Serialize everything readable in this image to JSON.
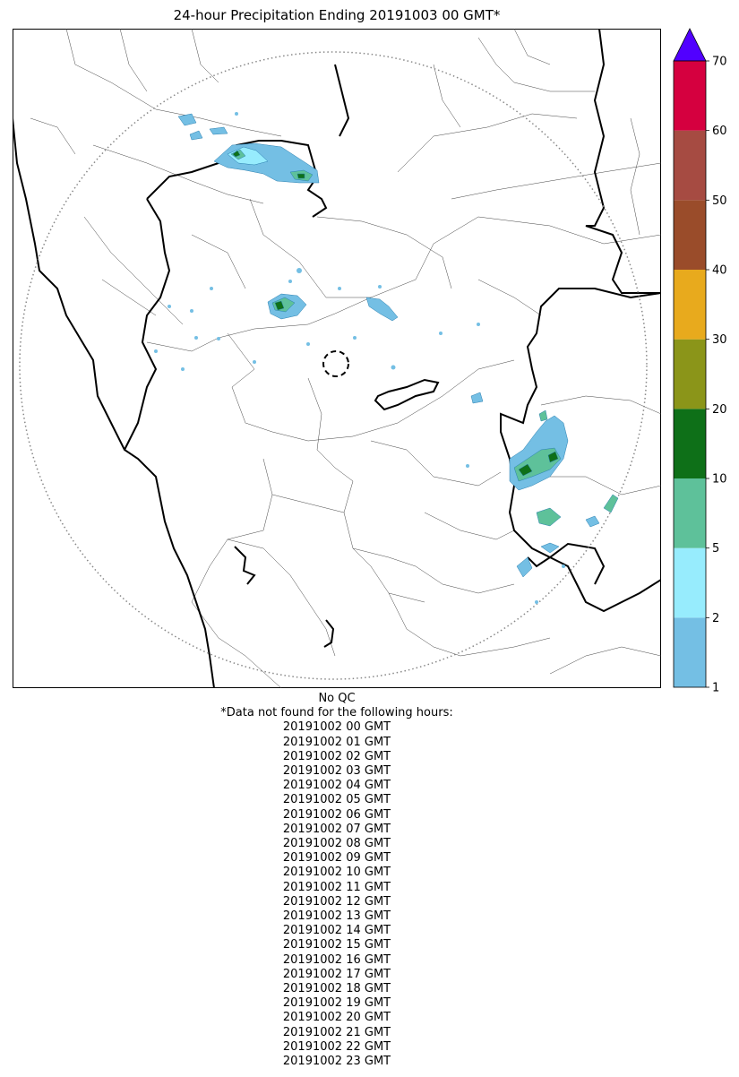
{
  "title": "24-hour Precipitation Ending 20191003 00 GMT*",
  "colorbar": {
    "bins": [
      {
        "from": 1,
        "to": 2,
        "color": "#74bfe4"
      },
      {
        "from": 2,
        "to": 5,
        "color": "#97ecfd"
      },
      {
        "from": 5,
        "to": 10,
        "color": "#5ec19a"
      },
      {
        "from": 10,
        "to": 20,
        "color": "#0e7018"
      },
      {
        "from": 20,
        "to": 30,
        "color": "#8b9519"
      },
      {
        "from": 30,
        "to": 40,
        "color": "#e8aa1d"
      },
      {
        "from": 40,
        "to": 50,
        "color": "#9a4c2a"
      },
      {
        "from": 50,
        "to": 60,
        "color": "#a64b42"
      },
      {
        "from": 60,
        "to": 70,
        "color": "#d5003f"
      }
    ],
    "extend_color": "#5100ff",
    "tick_labels": [
      "1",
      "2",
      "5",
      "10",
      "20",
      "30",
      "40",
      "50",
      "60",
      "70"
    ]
  },
  "notes": {
    "qc": "No QC",
    "header": "*Data not found for the following hours:",
    "missing_hours": [
      "20191002 00 GMT",
      "20191002 01 GMT",
      "20191002 02 GMT",
      "20191002 03 GMT",
      "20191002 04 GMT",
      "20191002 05 GMT",
      "20191002 06 GMT",
      "20191002 07 GMT",
      "20191002 08 GMT",
      "20191002 09 GMT",
      "20191002 10 GMT",
      "20191002 11 GMT",
      "20191002 12 GMT",
      "20191002 13 GMT",
      "20191002 14 GMT",
      "20191002 15 GMT",
      "20191002 16 GMT",
      "20191002 17 GMT",
      "20191002 18 GMT",
      "20191002 19 GMT",
      "20191002 20 GMT",
      "20191002 21 GMT",
      "20191002 22 GMT",
      "20191002 23 GMT"
    ]
  }
}
